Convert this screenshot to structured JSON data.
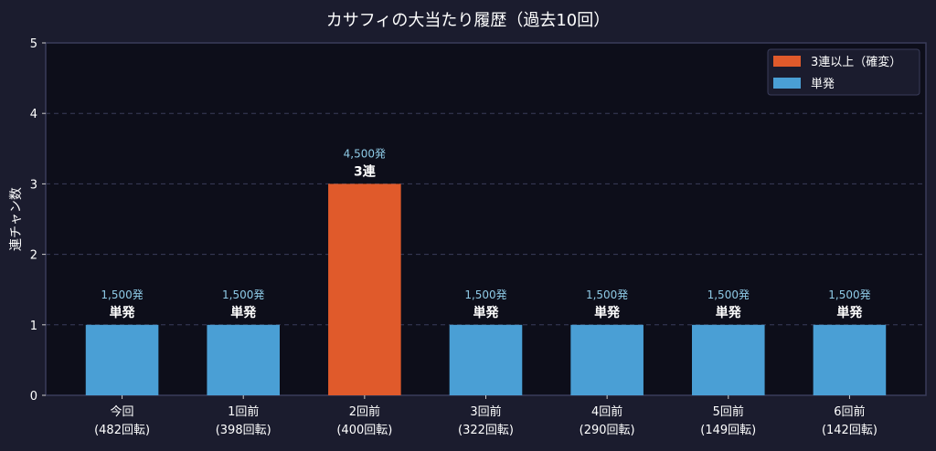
{
  "chart_data": {
    "type": "bar",
    "title": "カサフィの大当たり履歴（過去10回）",
    "xlabel": "",
    "ylabel": "連チャン数",
    "ylim": [
      0,
      5
    ],
    "yticks": [
      0,
      1,
      2,
      3,
      4,
      5
    ],
    "grid": true,
    "legend_placement": "top-right",
    "categories": [
      [
        "今回",
        "(482回転)"
      ],
      [
        "1回前",
        "(398回転)"
      ],
      [
        "2回前",
        "(400回転)"
      ],
      [
        "3回前",
        "(322回転)"
      ],
      [
        "4回前",
        "(290回転)"
      ],
      [
        "5回前",
        "(149回転)"
      ],
      [
        "6回前",
        "(142回転)"
      ]
    ],
    "values": [
      1,
      1,
      3,
      1,
      1,
      1,
      1
    ],
    "bar_labels": [
      "単発",
      "単発",
      "3連",
      "単発",
      "単発",
      "単発",
      "単発"
    ],
    "payout_labels": [
      "1,500発",
      "1,500発",
      "4,500発",
      "1,500発",
      "1,500発",
      "1,500発",
      "1,500発"
    ],
    "bar_series": [
      1,
      1,
      0,
      1,
      1,
      1,
      1
    ],
    "legend": [
      {
        "name": "3連以上（確変）",
        "color": "#e05a2b"
      },
      {
        "name": "単発",
        "color": "#4a9fd5"
      }
    ],
    "colors": {
      "background": "#1b1c2e",
      "plot_background": "#0d0e1a",
      "text": "#ffffff",
      "payout_text": "#8ecae6",
      "grid": "#3a3c5a"
    }
  }
}
